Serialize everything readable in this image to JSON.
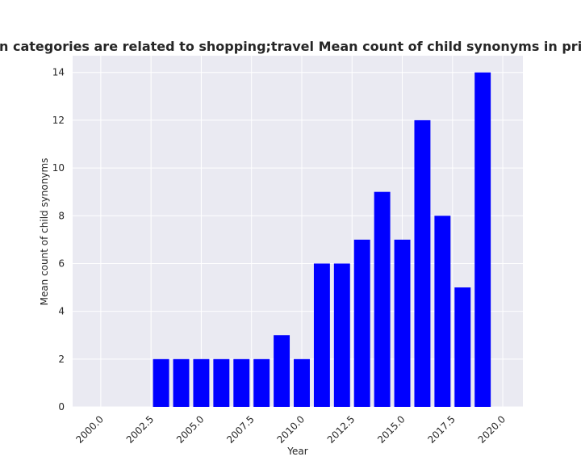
{
  "chart_data": {
    "type": "bar",
    "title": "Mean count of child synonyms in privacy policies by year, for websites in categories are related to shopping;travel Mean count of child synonyms in privacy policies b",
    "title_visible": "n categories are related to shopping;travel Mean count of child synonyms in privacy policies b",
    "xlabel": "Year",
    "ylabel": "Mean count of child synonyms",
    "x": [
      2003,
      2004,
      2005,
      2006,
      2007,
      2008,
      2009,
      2010,
      2011,
      2012,
      2013,
      2014,
      2015,
      2016,
      2017,
      2018,
      2019
    ],
    "values": [
      2,
      2,
      2,
      2,
      2,
      2,
      3,
      2,
      6,
      6,
      7,
      9,
      7,
      12,
      8,
      5,
      14
    ],
    "xlim": [
      1998.6,
      2021.0
    ],
    "ylim": [
      0,
      14.7
    ],
    "xticks": [
      "2000.0",
      "2002.5",
      "2005.0",
      "2007.5",
      "2010.0",
      "2012.5",
      "2015.0",
      "2017.5",
      "2020.0"
    ],
    "yticks": [
      "0",
      "2",
      "4",
      "6",
      "8",
      "10",
      "12",
      "14"
    ],
    "bar_color": "#0000ff",
    "background": "#eaeaf2",
    "grid": true,
    "legend": "none"
  }
}
